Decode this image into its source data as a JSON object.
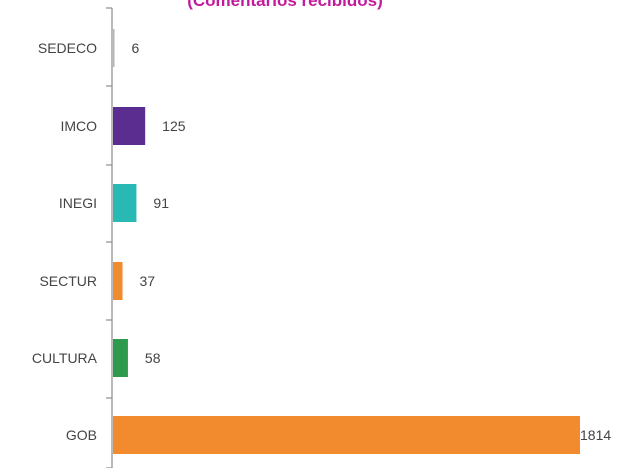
{
  "chart_data": {
    "type": "bar",
    "orientation": "horizontal",
    "title": "(Comentarios recibidos)",
    "xlabel": "",
    "ylabel": "",
    "grid": false,
    "xlim": [
      0,
      1814
    ],
    "categories": [
      "SEDECO",
      "IMCO",
      "INEGI",
      "SECTUR",
      "CULTURA",
      "GOB"
    ],
    "values": [
      6,
      125,
      91,
      37,
      58,
      1814
    ],
    "value_labels": [
      "6",
      "125",
      "91",
      "37",
      "58",
      "1814"
    ],
    "colors": [
      "#b7b7b7",
      "#5b2d91",
      "#29b9b4",
      "#f28a2e",
      "#2e9a4e",
      "#f28a2e"
    ],
    "title_color": "#c21a9c"
  }
}
